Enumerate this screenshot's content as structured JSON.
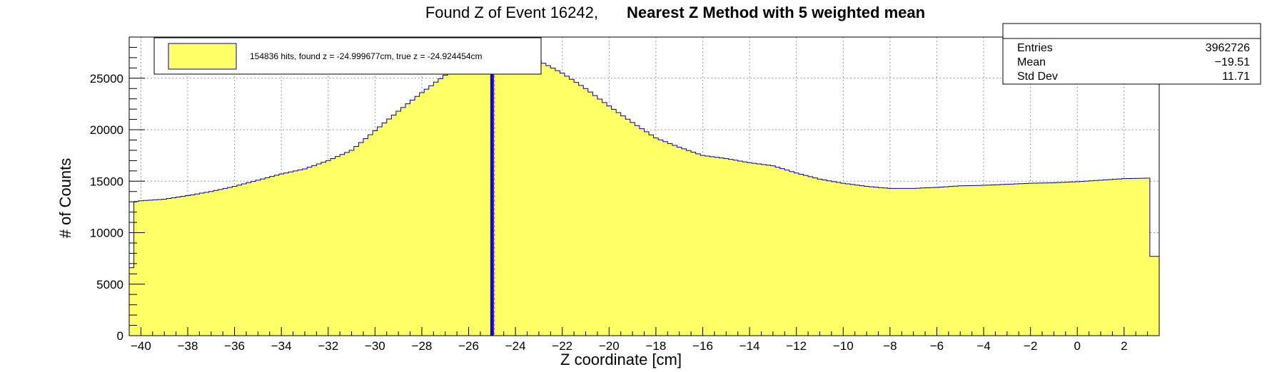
{
  "title": "Found Z of Event 16242,",
  "subtitle": "Nearest Z Method with 5 weighted mean",
  "legend": {
    "entry": "154836 hits, found z = -24.999677cm, true z = -24.924454cm"
  },
  "stats": {
    "entries_label": "Entries",
    "entries_value": "3962726",
    "mean_label": "Mean",
    "mean_value": "−19.51",
    "stddev_label": "Std Dev",
    "stddev_value": "11.71"
  },
  "colors": {
    "fill": "#ffff66",
    "outline": "#0000aa",
    "found_line": "#0000ff",
    "true_line": "#ff0000",
    "grid": "#9a9a9a"
  },
  "chart_data": {
    "type": "area",
    "title": "Found Z of Event 16242,   Nearest Z Method with 5 weighted mean",
    "xlabel": "Z coordinate [cm]",
    "ylabel": "# of Counts",
    "xlim": [
      -40.5,
      3.5
    ],
    "ylim": [
      0,
      29000
    ],
    "grid": true,
    "legend_position": "top-left",
    "x_ticks": [
      -40,
      -38,
      -36,
      -34,
      -32,
      -30,
      -28,
      -26,
      -24,
      -22,
      -20,
      -18,
      -16,
      -14,
      -12,
      -10,
      -8,
      -6,
      -4,
      -2,
      0,
      2
    ],
    "y_ticks": [
      0,
      5000,
      10000,
      15000,
      20000,
      25000
    ],
    "bin_width": 0.2,
    "histogram_points": [
      [
        -40.5,
        6600
      ],
      [
        -40.4,
        6600
      ],
      [
        -40.3,
        13000
      ],
      [
        -40.0,
        13100
      ],
      [
        -39.0,
        13250
      ],
      [
        -38.0,
        13600
      ],
      [
        -37.0,
        14000
      ],
      [
        -36.0,
        14500
      ],
      [
        -35.0,
        15100
      ],
      [
        -34.0,
        15700
      ],
      [
        -33.0,
        16200
      ],
      [
        -32.0,
        17000
      ],
      [
        -31.0,
        18000
      ],
      [
        -30.0,
        19900
      ],
      [
        -29.0,
        21800
      ],
      [
        -28.0,
        23600
      ],
      [
        -27.0,
        25300
      ],
      [
        -26.0,
        27000
      ],
      [
        -25.2,
        28200
      ],
      [
        -24.8,
        28000
      ],
      [
        -24.0,
        27300
      ],
      [
        -23.0,
        26700
      ],
      [
        -22.0,
        25500
      ],
      [
        -21.0,
        24000
      ],
      [
        -20.0,
        22300
      ],
      [
        -19.0,
        20700
      ],
      [
        -18.0,
        19200
      ],
      [
        -17.0,
        18300
      ],
      [
        -16.0,
        17500
      ],
      [
        -15.0,
        17200
      ],
      [
        -14.0,
        16800
      ],
      [
        -13.0,
        16500
      ],
      [
        -12.0,
        15800
      ],
      [
        -11.0,
        15200
      ],
      [
        -10.0,
        14800
      ],
      [
        -9.0,
        14500
      ],
      [
        -8.0,
        14300
      ],
      [
        -7.0,
        14300
      ],
      [
        -6.0,
        14400
      ],
      [
        -5.0,
        14550
      ],
      [
        -4.0,
        14600
      ],
      [
        -3.0,
        14700
      ],
      [
        -2.0,
        14800
      ],
      [
        -1.0,
        14850
      ],
      [
        0.0,
        14950
      ],
      [
        1.0,
        15100
      ],
      [
        2.0,
        15250
      ],
      [
        3.0,
        15300
      ],
      [
        3.2,
        7700
      ],
      [
        3.5,
        7700
      ]
    ],
    "found_z": -24.999677,
    "true_z": -24.924454
  }
}
